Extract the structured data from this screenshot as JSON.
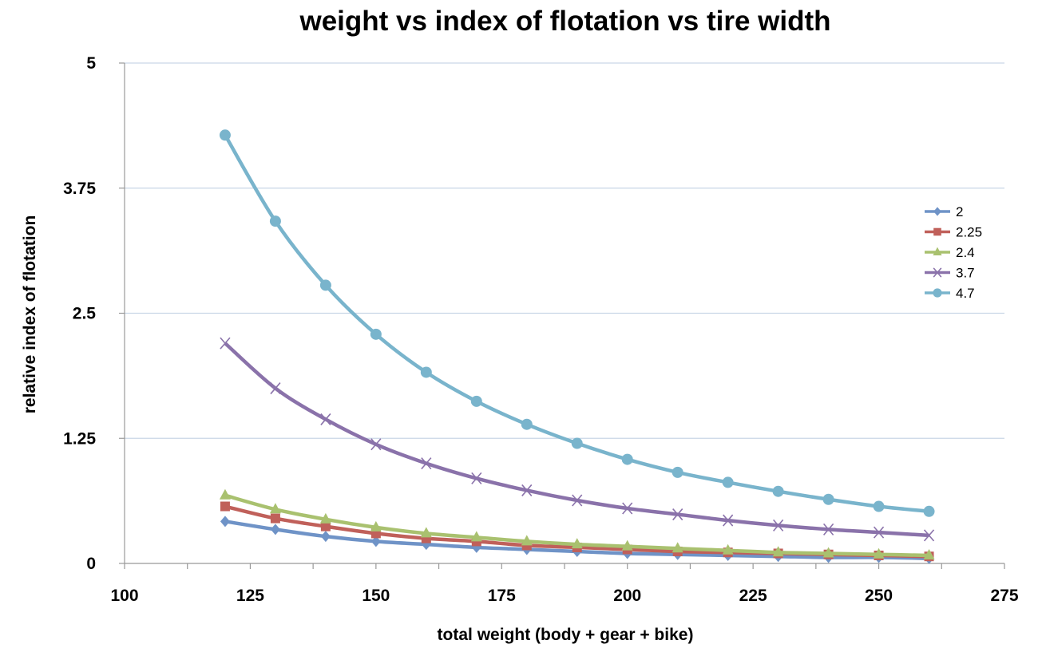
{
  "chart_data": {
    "type": "line",
    "title": "weight vs index of flotation vs tire width",
    "xlabel": "total weight (body + gear + bike)",
    "ylabel": "relative index of flotation",
    "xlim": [
      100,
      275
    ],
    "ylim": [
      0,
      5
    ],
    "xticks": [
      "100",
      "125",
      "150",
      "175",
      "200",
      "225",
      "250",
      "275"
    ],
    "yticks": [
      "0",
      "1.25",
      "2.5",
      "3.75",
      "5"
    ],
    "grid": "horizontal",
    "legend_position": "right",
    "x": [
      120,
      130,
      140,
      150,
      160,
      170,
      180,
      190,
      200,
      210,
      220,
      230,
      240,
      250,
      260
    ],
    "series": [
      {
        "name": "2",
        "color": "#6f93c7",
        "marker": "diamond",
        "values": [
          0.42,
          0.34,
          0.27,
          0.22,
          0.19,
          0.16,
          0.14,
          0.12,
          0.1,
          0.09,
          0.08,
          0.07,
          0.06,
          0.06,
          0.05
        ]
      },
      {
        "name": "2.25",
        "color": "#c0605a",
        "marker": "square",
        "values": [
          0.57,
          0.45,
          0.37,
          0.3,
          0.25,
          0.22,
          0.18,
          0.16,
          0.14,
          0.12,
          0.11,
          0.1,
          0.09,
          0.08,
          0.07
        ]
      },
      {
        "name": "2.4",
        "color": "#a9c16f",
        "marker": "triangle",
        "values": [
          0.68,
          0.54,
          0.44,
          0.36,
          0.3,
          0.26,
          0.22,
          0.19,
          0.17,
          0.15,
          0.13,
          0.11,
          0.1,
          0.09,
          0.08
        ]
      },
      {
        "name": "3.7",
        "color": "#8a72aa",
        "marker": "x",
        "values": [
          2.2,
          1.75,
          1.44,
          1.19,
          1.0,
          0.85,
          0.73,
          0.63,
          0.55,
          0.49,
          0.43,
          0.38,
          0.34,
          0.31,
          0.28
        ]
      },
      {
        "name": "4.7",
        "color": "#79b4cc",
        "marker": "circle",
        "values": [
          4.28,
          3.42,
          2.78,
          2.29,
          1.91,
          1.62,
          1.39,
          1.2,
          1.04,
          0.91,
          0.81,
          0.72,
          0.64,
          0.57,
          0.52
        ]
      }
    ]
  }
}
